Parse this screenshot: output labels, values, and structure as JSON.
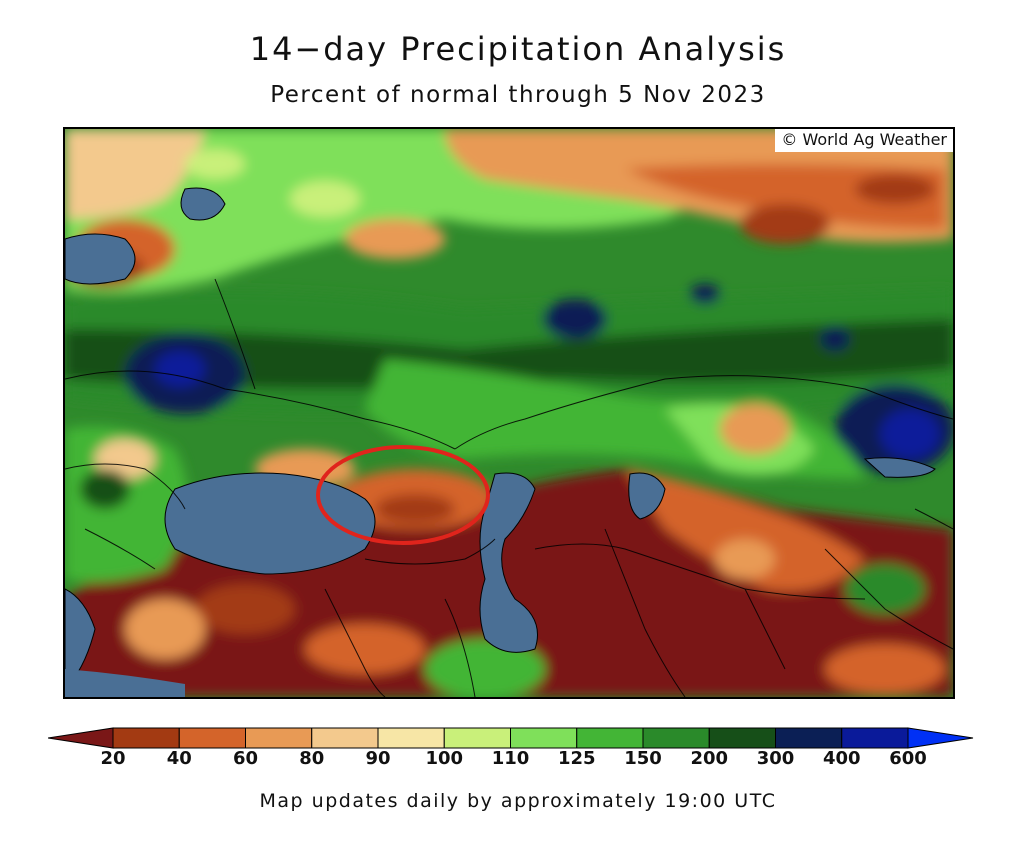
{
  "title": "14−day Precipitation Analysis",
  "subtitle": "Percent of normal through 5 Nov 2023",
  "credit": "© World Ag Weather",
  "footer": "Map updates daily by approximately 19:00 UTC",
  "legend": {
    "ticks": [
      "20",
      "40",
      "60",
      "80",
      "90",
      "100",
      "110",
      "125",
      "150",
      "200",
      "300",
      "400",
      "600"
    ],
    "colors": [
      "#7a1717",
      "#a33a12",
      "#d4642a",
      "#e89a55",
      "#f3c98d",
      "#f7e6a6",
      "#c9f07a",
      "#7fe05a",
      "#43b536",
      "#2a8a2a",
      "#164f18",
      "#0b1f55",
      "#0a1a9a",
      "#0030f5"
    ]
  },
  "colors": {
    "water": "#4a6f95",
    "highlight_circle": "#e0241c"
  }
}
